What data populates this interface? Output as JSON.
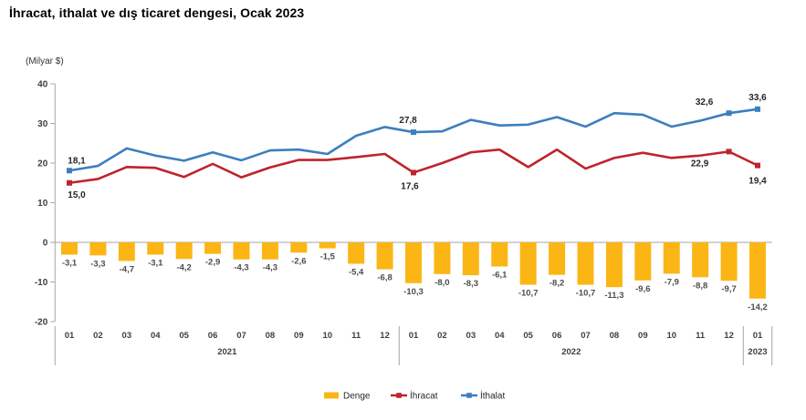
{
  "chart_data": {
    "type": "bar+line combo",
    "title": "İhracat, ithalat ve dış ticaret dengesi, Ocak 2023",
    "unit_label": "(Milyar $)",
    "ylim": [
      -20,
      40
    ],
    "yticks": [
      40,
      30,
      20,
      10,
      0,
      -10,
      -20
    ],
    "grid": false,
    "legend_position": "bottom-center",
    "x_groups": [
      {
        "year": "2021",
        "months": [
          "01",
          "02",
          "03",
          "04",
          "05",
          "06",
          "07",
          "08",
          "09",
          "10",
          "11",
          "12"
        ]
      },
      {
        "year": "2022",
        "months": [
          "01",
          "02",
          "03",
          "04",
          "05",
          "06",
          "07",
          "08",
          "09",
          "10",
          "11",
          "12"
        ]
      },
      {
        "year": "2023",
        "months": [
          "01"
        ]
      }
    ],
    "colors": {
      "denge": "#FBB615",
      "ihracat": "#BF232B",
      "ithalat": "#3D7EBF",
      "axis": "#A6A6A6",
      "tick_text": "#404040",
      "bar_label": "#4D4D4D",
      "point_label": "#262626"
    },
    "series": [
      {
        "name": "Denge",
        "slug": "denge",
        "type": "bar",
        "color": "#FBB615",
        "values": [
          -3.1,
          -3.3,
          -4.7,
          -3.1,
          -4.2,
          -2.9,
          -4.3,
          -4.3,
          -2.6,
          -1.5,
          -5.4,
          -6.8,
          -10.3,
          -8.0,
          -8.3,
          -6.1,
          -10.7,
          -8.2,
          -10.7,
          -11.3,
          -9.6,
          -7.9,
          -8.8,
          -9.7,
          -14.2
        ],
        "value_labels": [
          "-3,1",
          "-3,3",
          "-4,7",
          "-3,1",
          "-4,2",
          "-2,9",
          "-4,3",
          "-4,3",
          "-2,6",
          "-1,5",
          "-5,4",
          "-6,8",
          "-10,3",
          "-8,0",
          "-8,3",
          "-6,1",
          "-10,7",
          "-8,2",
          "-10,7",
          "-11,3",
          "-9,6",
          "-7,9",
          "-8,8",
          "-9,7",
          "-14,2"
        ]
      },
      {
        "name": "İhracat",
        "slug": "ihracat",
        "type": "line",
        "color": "#BF232B",
        "values": [
          15.0,
          16.0,
          19.0,
          18.8,
          16.5,
          19.8,
          16.4,
          18.9,
          20.8,
          20.8,
          21.5,
          22.3,
          17.6,
          20.0,
          22.7,
          23.4,
          19.0,
          23.4,
          18.6,
          21.3,
          22.6,
          21.3,
          21.9,
          22.9,
          19.4
        ],
        "labeled_points": [
          {
            "index": 0,
            "text": "15,0",
            "dx": 8,
            "dy": 16
          },
          {
            "index": 12,
            "text": "17,6",
            "dx": -4,
            "dy": 18
          },
          {
            "index": 23,
            "text": "22,9",
            "dx": -32,
            "dy": 16
          },
          {
            "index": 24,
            "text": "19,4",
            "dx": 0,
            "dy": 20
          }
        ]
      },
      {
        "name": "İthalat",
        "slug": "ithalat",
        "type": "line",
        "color": "#3D7EBF",
        "values": [
          18.1,
          19.3,
          23.7,
          21.9,
          20.6,
          22.7,
          20.7,
          23.2,
          23.4,
          22.3,
          26.9,
          29.1,
          27.8,
          28.0,
          30.9,
          29.5,
          29.7,
          31.6,
          29.2,
          32.6,
          32.2,
          29.2,
          30.7,
          32.6,
          33.6
        ],
        "labeled_points": [
          {
            "index": 0,
            "text": "18,1",
            "dx": 8,
            "dy": -8
          },
          {
            "index": 12,
            "text": "27,8",
            "dx": -6,
            "dy": -10
          },
          {
            "index": 23,
            "text": "32,6",
            "dx": -27,
            "dy": -9
          },
          {
            "index": 24,
            "text": "33,6",
            "dx": 0,
            "dy": -10
          }
        ]
      }
    ]
  }
}
